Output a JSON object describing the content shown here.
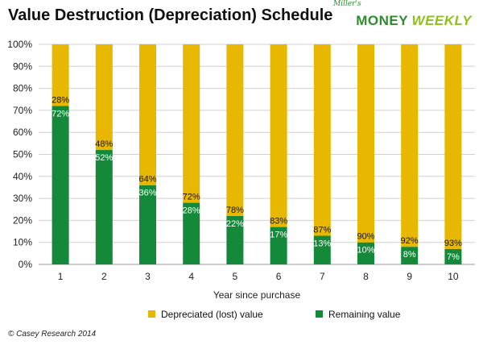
{
  "title": "Value Destruction (Depreciation) Schedule",
  "logo": {
    "small": "Miller's",
    "money": "MONEY",
    "weekly": "WEEKLY"
  },
  "footer": "© Casey Research 2014",
  "colors": {
    "depreciated": "#e8b800",
    "remaining": "#14893a",
    "grid": "#d0d0d0"
  },
  "chart_data": {
    "type": "bar",
    "stacked": true,
    "categories": [
      "1",
      "2",
      "3",
      "4",
      "5",
      "6",
      "7",
      "8",
      "9",
      "10"
    ],
    "series": [
      {
        "name": "Remaining value",
        "values": [
          72,
          52,
          36,
          28,
          22,
          17,
          13,
          10,
          8,
          7
        ],
        "labels": [
          "72%",
          "52%",
          "36%",
          "28%",
          "22%",
          "17%",
          "13%",
          "10%",
          "8%",
          "7%"
        ]
      },
      {
        "name": "Depreciated (lost) value",
        "values": [
          28,
          48,
          64,
          72,
          78,
          83,
          87,
          90,
          92,
          93
        ],
        "labels": [
          "28%",
          "48%",
          "64%",
          "72%",
          "78%",
          "83%",
          "87%",
          "90%",
          "92%",
          "93%"
        ]
      }
    ],
    "xlabel": "Year since purchase",
    "ylabel": "",
    "ylim": [
      0,
      100
    ],
    "yticks": [
      "0%",
      "10%",
      "20%",
      "30%",
      "40%",
      "50%",
      "60%",
      "70%",
      "80%",
      "90%",
      "100%"
    ],
    "legend": [
      "Depreciated (lost) value",
      "Remaining value"
    ],
    "legend_position": "bottom",
    "grid": true
  }
}
